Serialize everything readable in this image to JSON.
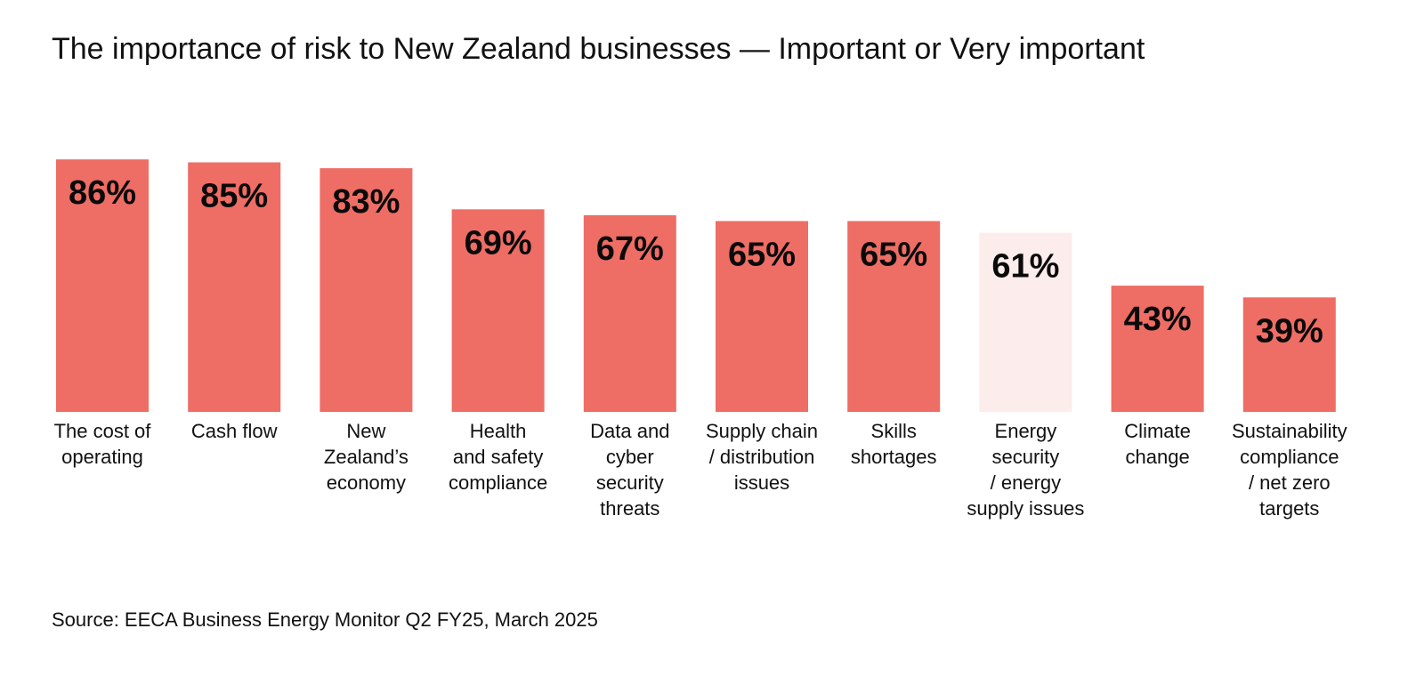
{
  "chart_data": {
    "type": "bar",
    "title": "The importance of risk to New Zealand businesses — Important or Very important",
    "categories": [
      "The cost of operating",
      "Cash flow",
      "New Zealand’s economy",
      "Health and safety compliance",
      "Data and cyber security threats",
      "Supply chain / distribution issues",
      "Skills shortages",
      "Energy security / energy supply issues",
      "Climate change",
      "Sustainability compliance / net zero targets"
    ],
    "values": [
      86,
      85,
      83,
      69,
      67,
      65,
      65,
      61,
      43,
      39
    ],
    "value_labels": [
      "86%",
      "85%",
      "83%",
      "69%",
      "67%",
      "65%",
      "65%",
      "61%",
      "43%",
      "39%"
    ],
    "highlighted_category": "Energy security / energy supply issues",
    "ylim": [
      0,
      100
    ],
    "grid": false,
    "xlabel": "",
    "ylabel": "",
    "colors": {
      "bar": "#EE6D65",
      "highlight_bar": "#FCEDEC",
      "label_text": "#0A0A0A"
    }
  },
  "footer": {
    "source": "Source: EECA Business Energy Monitor Q2 FY25, March 2025"
  }
}
